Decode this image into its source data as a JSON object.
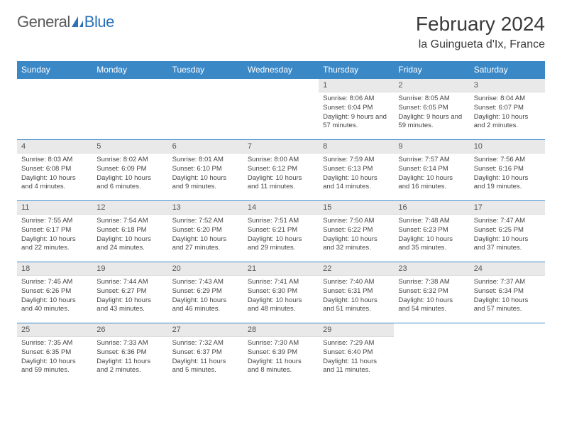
{
  "logo": {
    "part1": "General",
    "part2": "Blue"
  },
  "title": "February 2024",
  "location": "la Guingueta d'Ix, France",
  "colors": {
    "header_bg": "#3b88c7",
    "header_text": "#ffffff",
    "daynum_bg": "#e9e9e9",
    "border": "#3b88c7",
    "logo_gray": "#5a5a5a",
    "logo_blue": "#2a71b8"
  },
  "weekdays": [
    "Sunday",
    "Monday",
    "Tuesday",
    "Wednesday",
    "Thursday",
    "Friday",
    "Saturday"
  ],
  "weeks": [
    [
      {
        "empty": true
      },
      {
        "empty": true
      },
      {
        "empty": true
      },
      {
        "empty": true
      },
      {
        "n": "1",
        "sunrise": "Sunrise: 8:06 AM",
        "sunset": "Sunset: 6:04 PM",
        "daylight": "Daylight: 9 hours and 57 minutes."
      },
      {
        "n": "2",
        "sunrise": "Sunrise: 8:05 AM",
        "sunset": "Sunset: 6:05 PM",
        "daylight": "Daylight: 9 hours and 59 minutes."
      },
      {
        "n": "3",
        "sunrise": "Sunrise: 8:04 AM",
        "sunset": "Sunset: 6:07 PM",
        "daylight": "Daylight: 10 hours and 2 minutes."
      }
    ],
    [
      {
        "n": "4",
        "sunrise": "Sunrise: 8:03 AM",
        "sunset": "Sunset: 6:08 PM",
        "daylight": "Daylight: 10 hours and 4 minutes."
      },
      {
        "n": "5",
        "sunrise": "Sunrise: 8:02 AM",
        "sunset": "Sunset: 6:09 PM",
        "daylight": "Daylight: 10 hours and 6 minutes."
      },
      {
        "n": "6",
        "sunrise": "Sunrise: 8:01 AM",
        "sunset": "Sunset: 6:10 PM",
        "daylight": "Daylight: 10 hours and 9 minutes."
      },
      {
        "n": "7",
        "sunrise": "Sunrise: 8:00 AM",
        "sunset": "Sunset: 6:12 PM",
        "daylight": "Daylight: 10 hours and 11 minutes."
      },
      {
        "n": "8",
        "sunrise": "Sunrise: 7:59 AM",
        "sunset": "Sunset: 6:13 PM",
        "daylight": "Daylight: 10 hours and 14 minutes."
      },
      {
        "n": "9",
        "sunrise": "Sunrise: 7:57 AM",
        "sunset": "Sunset: 6:14 PM",
        "daylight": "Daylight: 10 hours and 16 minutes."
      },
      {
        "n": "10",
        "sunrise": "Sunrise: 7:56 AM",
        "sunset": "Sunset: 6:16 PM",
        "daylight": "Daylight: 10 hours and 19 minutes."
      }
    ],
    [
      {
        "n": "11",
        "sunrise": "Sunrise: 7:55 AM",
        "sunset": "Sunset: 6:17 PM",
        "daylight": "Daylight: 10 hours and 22 minutes."
      },
      {
        "n": "12",
        "sunrise": "Sunrise: 7:54 AM",
        "sunset": "Sunset: 6:18 PM",
        "daylight": "Daylight: 10 hours and 24 minutes."
      },
      {
        "n": "13",
        "sunrise": "Sunrise: 7:52 AM",
        "sunset": "Sunset: 6:20 PM",
        "daylight": "Daylight: 10 hours and 27 minutes."
      },
      {
        "n": "14",
        "sunrise": "Sunrise: 7:51 AM",
        "sunset": "Sunset: 6:21 PM",
        "daylight": "Daylight: 10 hours and 29 minutes."
      },
      {
        "n": "15",
        "sunrise": "Sunrise: 7:50 AM",
        "sunset": "Sunset: 6:22 PM",
        "daylight": "Daylight: 10 hours and 32 minutes."
      },
      {
        "n": "16",
        "sunrise": "Sunrise: 7:48 AM",
        "sunset": "Sunset: 6:23 PM",
        "daylight": "Daylight: 10 hours and 35 minutes."
      },
      {
        "n": "17",
        "sunrise": "Sunrise: 7:47 AM",
        "sunset": "Sunset: 6:25 PM",
        "daylight": "Daylight: 10 hours and 37 minutes."
      }
    ],
    [
      {
        "n": "18",
        "sunrise": "Sunrise: 7:45 AM",
        "sunset": "Sunset: 6:26 PM",
        "daylight": "Daylight: 10 hours and 40 minutes."
      },
      {
        "n": "19",
        "sunrise": "Sunrise: 7:44 AM",
        "sunset": "Sunset: 6:27 PM",
        "daylight": "Daylight: 10 hours and 43 minutes."
      },
      {
        "n": "20",
        "sunrise": "Sunrise: 7:43 AM",
        "sunset": "Sunset: 6:29 PM",
        "daylight": "Daylight: 10 hours and 46 minutes."
      },
      {
        "n": "21",
        "sunrise": "Sunrise: 7:41 AM",
        "sunset": "Sunset: 6:30 PM",
        "daylight": "Daylight: 10 hours and 48 minutes."
      },
      {
        "n": "22",
        "sunrise": "Sunrise: 7:40 AM",
        "sunset": "Sunset: 6:31 PM",
        "daylight": "Daylight: 10 hours and 51 minutes."
      },
      {
        "n": "23",
        "sunrise": "Sunrise: 7:38 AM",
        "sunset": "Sunset: 6:32 PM",
        "daylight": "Daylight: 10 hours and 54 minutes."
      },
      {
        "n": "24",
        "sunrise": "Sunrise: 7:37 AM",
        "sunset": "Sunset: 6:34 PM",
        "daylight": "Daylight: 10 hours and 57 minutes."
      }
    ],
    [
      {
        "n": "25",
        "sunrise": "Sunrise: 7:35 AM",
        "sunset": "Sunset: 6:35 PM",
        "daylight": "Daylight: 10 hours and 59 minutes."
      },
      {
        "n": "26",
        "sunrise": "Sunrise: 7:33 AM",
        "sunset": "Sunset: 6:36 PM",
        "daylight": "Daylight: 11 hours and 2 minutes."
      },
      {
        "n": "27",
        "sunrise": "Sunrise: 7:32 AM",
        "sunset": "Sunset: 6:37 PM",
        "daylight": "Daylight: 11 hours and 5 minutes."
      },
      {
        "n": "28",
        "sunrise": "Sunrise: 7:30 AM",
        "sunset": "Sunset: 6:39 PM",
        "daylight": "Daylight: 11 hours and 8 minutes."
      },
      {
        "n": "29",
        "sunrise": "Sunrise: 7:29 AM",
        "sunset": "Sunset: 6:40 PM",
        "daylight": "Daylight: 11 hours and 11 minutes."
      },
      {
        "empty": true
      },
      {
        "empty": true
      }
    ]
  ]
}
